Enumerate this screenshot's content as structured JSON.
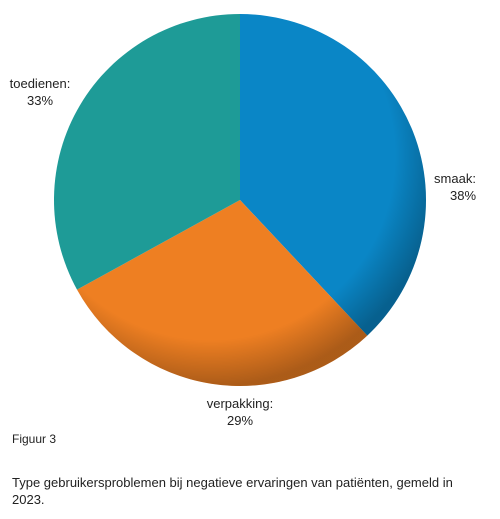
{
  "chart_data": {
    "type": "pie",
    "categories": [
      "smaak:",
      "verpakking:",
      "toedienen:"
    ],
    "values": [
      38,
      29,
      33
    ],
    "value_labels": [
      "38%",
      "29%",
      "33%"
    ],
    "colors": [
      "#0a86c6",
      "#ee7f22",
      "#1e9b97"
    ]
  },
  "figure_label": "Figuur 3",
  "caption": "Type gebruikersproblemen bij negatieve ervaringen van patiënten, gemeld in 2023."
}
